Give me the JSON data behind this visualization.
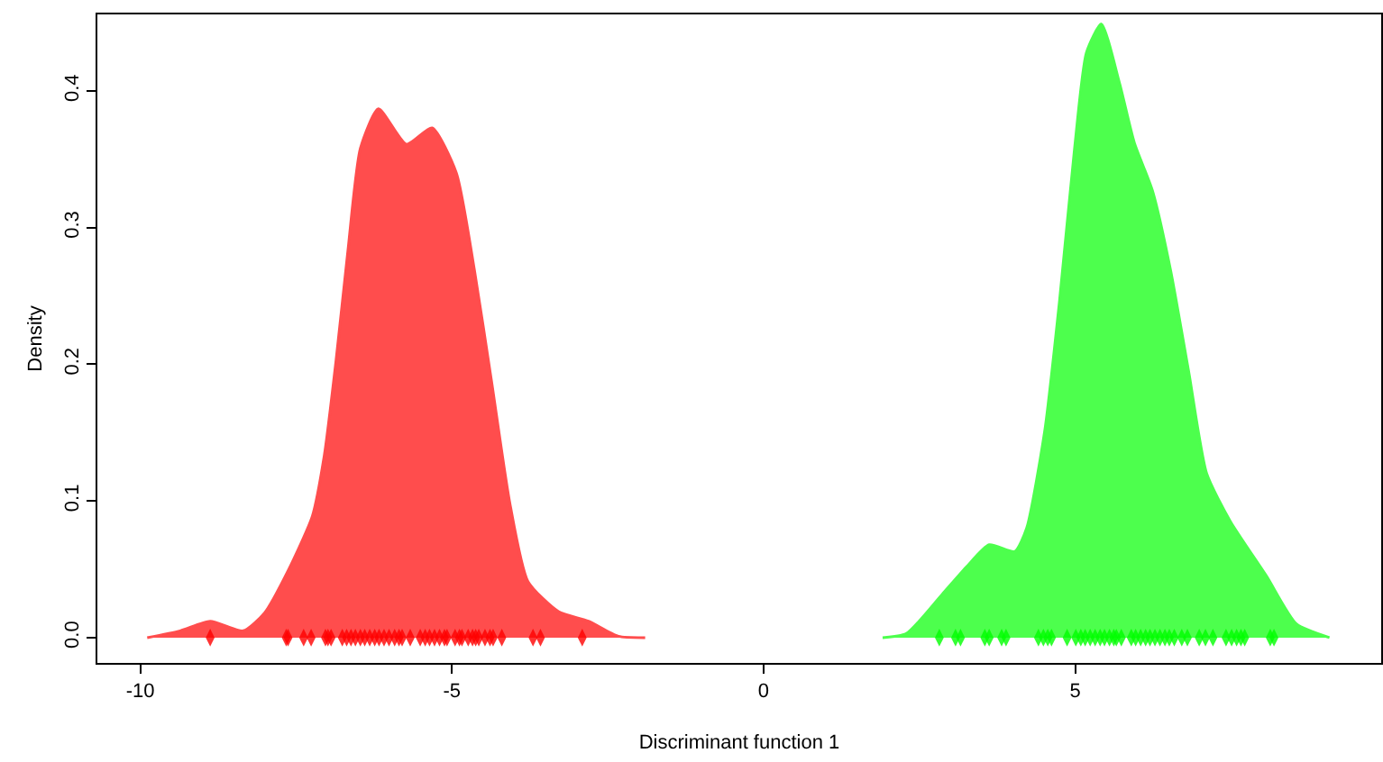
{
  "chart_data": {
    "type": "area",
    "xlabel": "Discriminant function 1",
    "ylabel": "Density",
    "xlim": [
      -10.69,
      9.91
    ],
    "ylim": [
      -0.0185,
      0.456
    ],
    "xticks": [
      -10,
      -5,
      0,
      5
    ],
    "yticks": [
      {
        "value": 0,
        "label": "0.0"
      },
      0.1,
      0.2,
      0.3,
      0.4
    ],
    "series": [
      {
        "color": "#ff4d4d",
        "x": [
          -9.89,
          -9.36,
          -8.88,
          -8.35,
          -8.01,
          -7.63,
          -7.24,
          -7.05,
          -6.86,
          -6.67,
          -6.47,
          -6.18,
          -5.73,
          -5.32,
          -4.93,
          -4.64,
          -4.36,
          -4.07,
          -3.78,
          -3.29,
          -2.81,
          -2.33,
          -1.9
        ],
        "values": [
          0,
          0.005,
          0.012,
          0.005,
          0.018,
          0.049,
          0.089,
          0.133,
          0.203,
          0.283,
          0.358,
          0.387,
          0.361,
          0.373,
          0.34,
          0.269,
          0.186,
          0.098,
          0.041,
          0.019,
          0.012,
          0.001,
          0
        ]
      },
      {
        "color": "#4dff4d",
        "x": [
          1.91,
          2.29,
          2.87,
          3.26,
          3.62,
          4.03,
          4.22,
          4.51,
          4.75,
          4.99,
          5.18,
          5.42,
          5.71,
          5.95,
          6.24,
          6.53,
          6.82,
          7.11,
          7.49,
          8.07,
          8.55,
          9.08
        ],
        "values": [
          0,
          0.003,
          0.032,
          0.052,
          0.068,
          0.063,
          0.08,
          0.151,
          0.247,
          0.358,
          0.428,
          0.449,
          0.406,
          0.362,
          0.327,
          0.269,
          0.195,
          0.12,
          0.085,
          0.045,
          0.01,
          0
        ]
      },
      {
        "type": "scatter",
        "marker": "diamond",
        "color": "#ff0000",
        "x": [
          -8.88,
          -7.66,
          -7.63,
          -7.38,
          -7.26,
          -7.03,
          -6.99,
          -6.94,
          -6.76,
          -6.69,
          -6.62,
          -6.55,
          -6.47,
          -6.4,
          -6.32,
          -6.24,
          -6.17,
          -6.09,
          -6.01,
          -5.92,
          -5.85,
          -5.8,
          -5.67,
          -5.51,
          -5.43,
          -5.36,
          -5.28,
          -5.2,
          -5.12,
          -5.08,
          -4.95,
          -4.88,
          -4.84,
          -4.74,
          -4.67,
          -4.62,
          -4.57,
          -4.47,
          -4.39,
          -4.34,
          -4.2,
          -3.7,
          -3.58,
          -2.91
        ],
        "values": [
          0,
          0,
          0,
          0,
          0,
          0,
          0,
          0,
          0,
          0,
          0,
          0,
          0,
          0,
          0,
          0,
          0,
          0,
          0,
          0,
          0,
          0,
          0,
          0,
          0,
          0,
          0,
          0,
          0,
          0,
          0,
          0,
          0,
          0,
          0,
          0,
          0,
          0,
          0,
          0,
          0,
          0,
          0,
          0
        ]
      },
      {
        "type": "scatter",
        "marker": "diamond",
        "color": "#00ff00",
        "x": [
          2.82,
          3.08,
          3.16,
          3.55,
          3.62,
          3.82,
          3.89,
          4.41,
          4.49,
          4.56,
          4.62,
          4.87,
          5.01,
          5.09,
          5.16,
          5.24,
          5.32,
          5.4,
          5.47,
          5.55,
          5.62,
          5.66,
          5.74,
          5.9,
          5.97,
          6.05,
          6.13,
          6.2,
          6.28,
          6.36,
          6.44,
          6.51,
          6.59,
          6.71,
          6.8,
          6.99,
          7.09,
          7.21,
          7.42,
          7.51,
          7.59,
          7.66,
          7.72,
          8.13,
          8.19
        ],
        "values": [
          0,
          0,
          0,
          0,
          0,
          0,
          0,
          0,
          0,
          0,
          0,
          0,
          0,
          0,
          0,
          0,
          0,
          0,
          0,
          0,
          0,
          0,
          0,
          0,
          0,
          0,
          0,
          0,
          0,
          0,
          0,
          0,
          0,
          0,
          0,
          0,
          0,
          0,
          0,
          0,
          0,
          0,
          0,
          0,
          0
        ]
      }
    ]
  }
}
